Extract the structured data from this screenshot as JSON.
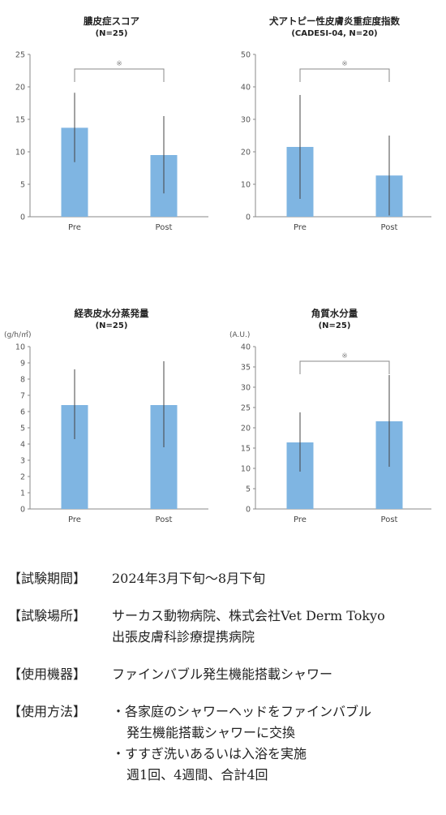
{
  "charts": [
    {
      "title": "膿皮症スコア",
      "subtitle": "(N=25)",
      "unit": "",
      "annotation": "※",
      "yticks": [
        "0",
        "5",
        "10",
        "15",
        "20",
        "25"
      ]
    },
    {
      "title": "犬アトピー性皮膚炎重症度指数",
      "subtitle": "(CADESI-04, N=20)",
      "unit": "",
      "annotation": "※",
      "yticks": [
        "0",
        "10",
        "20",
        "30",
        "40",
        "50"
      ]
    },
    {
      "title": "経表皮水分蒸発量",
      "subtitle": "(N=25)",
      "unit": "(g/h/㎡)",
      "annotation": "",
      "yticks": [
        "0",
        "1",
        "2",
        "3",
        "4",
        "5",
        "6",
        "7",
        "8",
        "9",
        "10"
      ]
    },
    {
      "title": "角質水分量",
      "subtitle": "(N=25)",
      "unit": "(A.U.)",
      "annotation": "※",
      "yticks": [
        "0",
        "5",
        "10",
        "15",
        "20",
        "25",
        "30",
        "35",
        "40"
      ]
    }
  ],
  "chart_data": [
    {
      "type": "bar",
      "categories": [
        "Pre",
        "Post"
      ],
      "values": [
        13.7,
        9.5
      ],
      "error_low": [
        8.4,
        3.6
      ],
      "error_high": [
        19.1,
        15.5
      ],
      "ylim": [
        0,
        25
      ],
      "significance": true,
      "bar_color": "#7fb5e2"
    },
    {
      "type": "bar",
      "categories": [
        "Pre",
        "Post"
      ],
      "values": [
        21.5,
        12.7
      ],
      "error_low": [
        5.5,
        0.4
      ],
      "error_high": [
        37.5,
        25.0
      ],
      "ylim": [
        0,
        50
      ],
      "significance": true,
      "bar_color": "#7fb5e2"
    },
    {
      "type": "bar",
      "categories": [
        "Pre",
        "Post"
      ],
      "values": [
        6.4,
        6.4
      ],
      "error_low": [
        4.3,
        3.8
      ],
      "error_high": [
        8.6,
        9.1
      ],
      "ylim": [
        0,
        10
      ],
      "significance": false,
      "bar_color": "#7fb5e2"
    },
    {
      "type": "bar",
      "categories": [
        "Pre",
        "Post"
      ],
      "values": [
        16.4,
        21.6
      ],
      "error_low": [
        9.2,
        10.4
      ],
      "error_high": [
        23.8,
        33.0
      ],
      "ylim": [
        0,
        40
      ],
      "significance": true,
      "bar_color": "#7fb5e2"
    }
  ],
  "info": [
    {
      "label": "【試験期間】",
      "lines": [
        "2024年3月下旬〜8月下旬"
      ]
    },
    {
      "label": "【試験場所】",
      "lines": [
        "サーカス動物病院、株式会社Vet Derm Tokyo",
        "出張皮膚科診療提携病院"
      ]
    },
    {
      "label": "【使用機器】",
      "lines": [
        "ファインバブル発生機能搭載シャワー"
      ]
    },
    {
      "label": "【使用方法】",
      "bullets": [
        {
          "first": "・各家庭のシャワーヘッドをファインバブル",
          "cont": "発生機能搭載シャワーに交換"
        },
        {
          "first": "・すすぎ洗いあるいは入浴を実施",
          "cont": "週1回、4週間、合計4回"
        }
      ]
    }
  ]
}
